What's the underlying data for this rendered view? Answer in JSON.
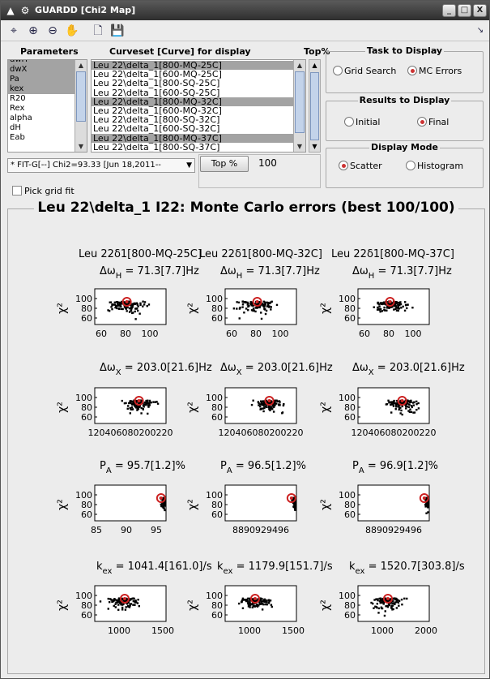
{
  "window": {
    "title": "GUARDD [Chi2 Map]",
    "controls": [
      "_",
      "□",
      "X"
    ]
  },
  "headers": {
    "parameters": "Parameters",
    "curveset": "Curveset [Curve] for display",
    "top_pct": "Top%"
  },
  "parameters_list": [
    "dwH",
    "dwX",
    "Pa",
    "kex",
    "R20",
    "Rex",
    "alpha",
    "dH",
    "Eab"
  ],
  "parameters_selected": [
    0,
    1,
    2,
    3
  ],
  "curveset_list": [
    "Leu 22\\delta_1[800-MQ-25C]",
    "Leu 22\\delta_1[600-MQ-25C]",
    "Leu 22\\delta_1[800-SQ-25C]",
    "Leu 22\\delta_1[600-SQ-25C]",
    "Leu 22\\delta_1[800-MQ-32C]",
    "Leu 22\\delta_1[600-MQ-32C]",
    "Leu 22\\delta_1[800-SQ-32C]",
    "Leu 22\\delta_1[600-SQ-32C]",
    "Leu 22\\delta_1[800-MQ-37C]",
    "Leu 22\\delta_1[800-SQ-37C]"
  ],
  "curveset_selected": [
    0,
    4,
    8
  ],
  "fit_dropdown": "* FIT-G[--] Chi2=93.33 [Jun 18,2011--",
  "top_pct_button": "Top %",
  "top_pct_value": "100",
  "pick_grid_fit": "Pick grid fit",
  "task_group": {
    "title": "Task to Display",
    "options": [
      "Grid Search",
      "MC Errors"
    ],
    "selected": "MC Errors"
  },
  "results_group": {
    "title": "Results to Display",
    "options": [
      "Initial",
      "Final"
    ],
    "selected": "Final"
  },
  "mode_group": {
    "title": "Display Mode",
    "options": [
      "Scatter",
      "Histogram"
    ],
    "selected": "Scatter"
  },
  "panel_title": "Leu 22\\delta_1 I22: Monte Carlo errors (best 100/100)",
  "colors": {
    "best_fit_marker": "#cc2222",
    "points": "#000000",
    "selected_row": "#a3a3a3"
  },
  "chart_data": {
    "type": "scatter",
    "ylabel": "χ²",
    "yticks": [
      "100",
      "80",
      "60"
    ],
    "columns": [
      {
        "curve": "Leu 22δ1[800-MQ-25C]"
      },
      {
        "curve": "Leu 22δ1[800-MQ-32C]"
      },
      {
        "curve": "Leu 22δ1[800-MQ-37C]"
      }
    ],
    "rows": [
      {
        "param": "Δω_H",
        "values": [
          "71.3[7.7]Hz",
          "71.3[7.7]Hz",
          "71.3[7.7]Hz"
        ],
        "xticks": [
          [
            "60",
            "80",
            "100"
          ],
          [
            "60",
            "80",
            "100"
          ],
          [
            "60",
            "80",
            "100"
          ]
        ],
        "best": [
          71.3,
          71.3,
          71.3
        ]
      },
      {
        "param": "Δω_X",
        "values": [
          "203.0[21.6]Hz",
          "203.0[21.6]Hz",
          "203.0[21.6]Hz"
        ],
        "xticks": [
          [
            "120406080200220"
          ],
          [
            "120406080200220"
          ],
          [
            "120406080200220"
          ]
        ],
        "best": [
          203.0,
          203.0,
          203.0
        ]
      },
      {
        "param": "P_A",
        "values": [
          "95.7[1.2]%",
          "96.5[1.2]%",
          "96.9[1.2]%"
        ],
        "xticks": [
          [
            "85",
            "90",
            "95"
          ],
          [
            "8890929496"
          ],
          [
            "8890929496"
          ]
        ],
        "best": [
          95.7,
          96.5,
          96.9
        ]
      },
      {
        "param": "k_ex",
        "values": [
          "1041.4[161.0]/s",
          "1179.9[151.7]/s",
          "1520.7[303.8]/s"
        ],
        "xticks": [
          [
            "1000",
            "1500"
          ],
          [
            "1000",
            "1500"
          ],
          [
            "1000",
            "2000"
          ]
        ],
        "best": [
          1041.4,
          1179.9,
          1520.7
        ]
      }
    ]
  }
}
